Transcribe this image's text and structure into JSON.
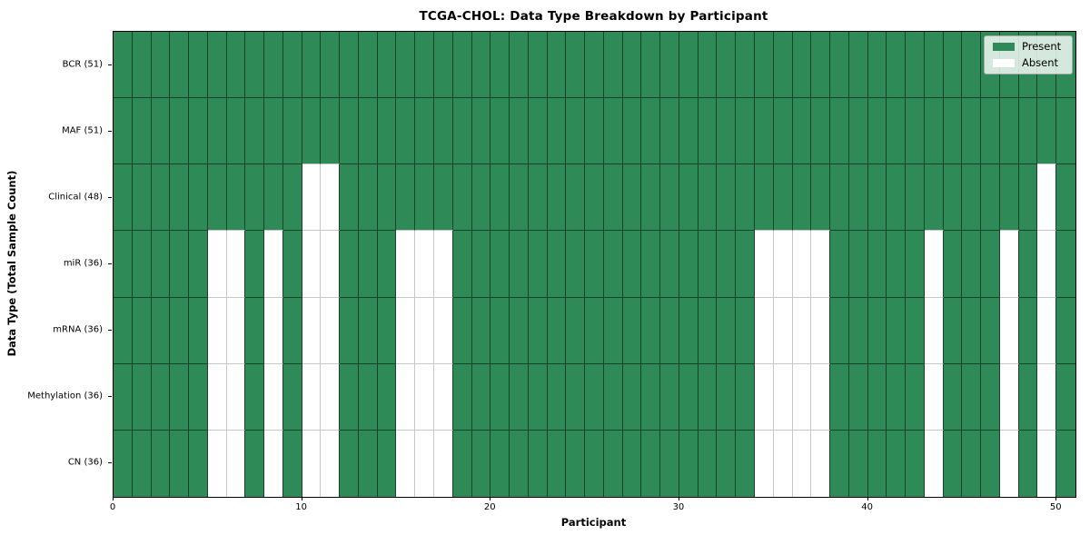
{
  "chart_data": {
    "type": "heatmap",
    "title": "TCGA-CHOL: Data Type Breakdown by Participant",
    "xlabel": "Participant",
    "ylabel": "Data Type (Total Sample Count)",
    "n_participants": 51,
    "x_axis_range": [
      0,
      51
    ],
    "x_ticks": [
      0,
      10,
      20,
      30,
      40,
      50
    ],
    "grid": true,
    "legend_position": "upper right",
    "legend": [
      {
        "label": "Present",
        "color": "#2e8b57"
      },
      {
        "label": "Absent",
        "color": "#ffffff"
      }
    ],
    "colors": {
      "present": "#2e8b57",
      "absent": "#ffffff",
      "edge_dark": "#17432b",
      "edge_light": "#c8c8c8",
      "frame": "#000000"
    },
    "rows": [
      {
        "label": "BCR (51)",
        "data_type": "BCR",
        "present_count": 51,
        "absent_participants": []
      },
      {
        "label": "MAF (51)",
        "data_type": "MAF",
        "present_count": 51,
        "absent_participants": []
      },
      {
        "label": "Clinical (48)",
        "data_type": "Clinical",
        "present_count": 48,
        "absent_participants": [
          10,
          11,
          49
        ]
      },
      {
        "label": "miR (36)",
        "data_type": "miR",
        "present_count": 36,
        "absent_participants": [
          5,
          6,
          8,
          10,
          11,
          15,
          16,
          17,
          34,
          35,
          36,
          37,
          43,
          47,
          49
        ]
      },
      {
        "label": "mRNA (36)",
        "data_type": "mRNA",
        "present_count": 36,
        "absent_participants": [
          5,
          6,
          8,
          10,
          11,
          15,
          16,
          17,
          34,
          35,
          36,
          37,
          43,
          47,
          49
        ]
      },
      {
        "label": "Methylation (36)",
        "data_type": "Methylation",
        "present_count": 36,
        "absent_participants": [
          5,
          6,
          8,
          10,
          11,
          15,
          16,
          17,
          34,
          35,
          36,
          37,
          43,
          47,
          49
        ]
      },
      {
        "label": "CN (36)",
        "data_type": "CN",
        "present_count": 36,
        "absent_participants": [
          5,
          6,
          8,
          10,
          11,
          15,
          16,
          17,
          34,
          35,
          36,
          37,
          43,
          47,
          49
        ]
      }
    ]
  }
}
